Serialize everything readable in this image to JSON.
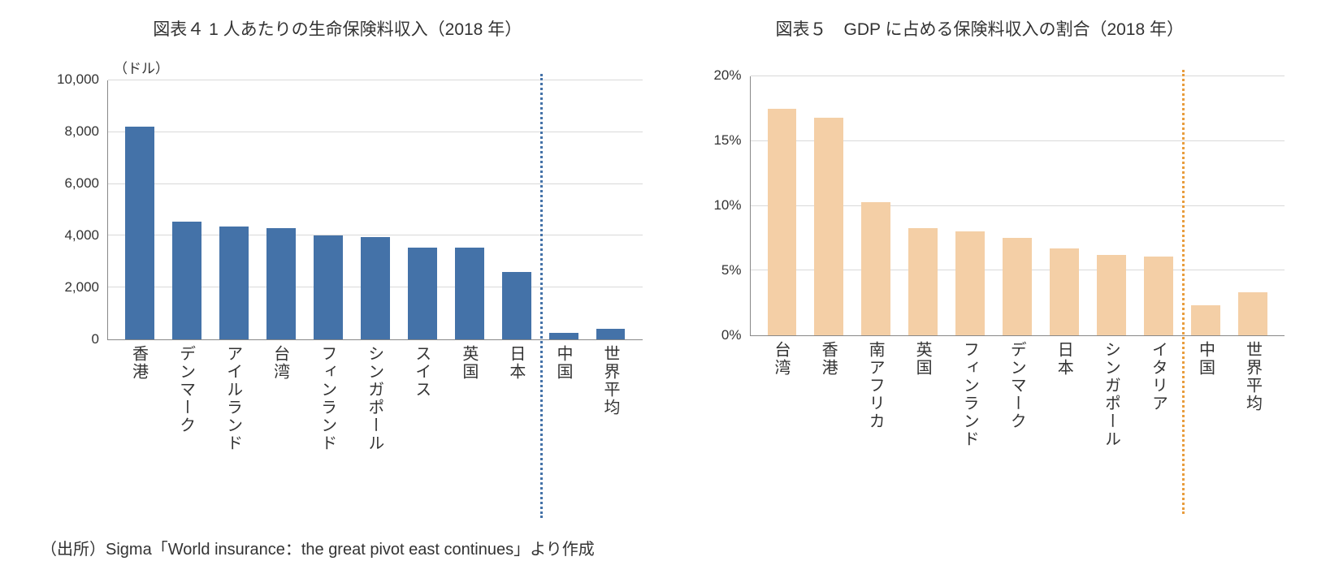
{
  "chart_left": {
    "title": "図表４ 1 人あたりの生命保険料収入（2018 年）",
    "y_unit_label": "（ドル）",
    "type": "bar",
    "categories": [
      "香港",
      "デンマーク",
      "アイルランド",
      "台湾",
      "フィンランド",
      "シンガポール",
      "スイス",
      "英国",
      "日本",
      "中国",
      "世界平均"
    ],
    "values": [
      8200,
      4550,
      4350,
      4300,
      4000,
      3950,
      3550,
      3550,
      2600,
      250,
      400
    ],
    "bar_color": "#4472a8",
    "y_ticks": [
      0,
      2000,
      4000,
      6000,
      8000,
      10000
    ],
    "y_tick_labels": [
      "0",
      "2,000",
      "4,000",
      "6,000",
      "8,000",
      "10,000"
    ],
    "ymax": 10000,
    "grid_color": "#d9d9d9",
    "axis_color": "#888888",
    "divider_after_index": 9,
    "divider_color": "#4472a8",
    "title_fontsize": 21,
    "label_fontsize": 20,
    "tick_fontsize": 17,
    "bar_width": 0.62,
    "background_color": "#ffffff"
  },
  "chart_right": {
    "title": "図表５　GDP に占める保険料収入の割合（2018 年）",
    "type": "bar",
    "categories": [
      "台湾",
      "香港",
      "南アフリカ",
      "英国",
      "フィンランド",
      "デンマーク",
      "日本",
      "シンガポール",
      "イタリア",
      "中国",
      "世界平均"
    ],
    "values": [
      17.5,
      16.8,
      10.3,
      8.3,
      8.0,
      7.5,
      6.7,
      6.2,
      6.1,
      2.3,
      3.3
    ],
    "bar_color": "#f4cfa6",
    "y_ticks": [
      0,
      5,
      10,
      15,
      20
    ],
    "y_tick_labels": [
      "0%",
      "5%",
      "10%",
      "15%",
      "20%"
    ],
    "ymax": 20,
    "grid_color": "#d9d9d9",
    "axis_color": "#888888",
    "divider_after_index": 9,
    "divider_color": "#e89c3c",
    "title_fontsize": 21,
    "label_fontsize": 20,
    "tick_fontsize": 17,
    "bar_width": 0.62,
    "background_color": "#ffffff"
  },
  "source_text": "（出所）Sigma「World insurance：the great pivot east continues」より作成"
}
